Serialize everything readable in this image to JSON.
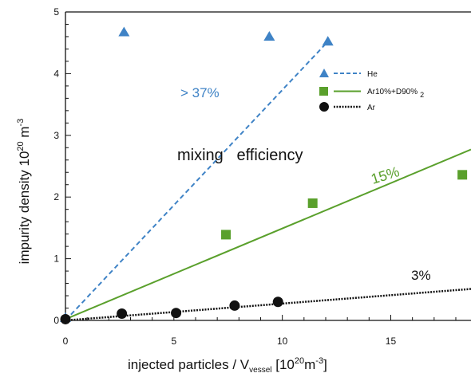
{
  "chart_data": {
    "type": "scatter",
    "xlabel": "injected particles / V",
    "xlabel_sub": "vessel",
    "xlabel_unit_open": " [10",
    "xlabel_unit_exp1": "20",
    "xlabel_unit_mid": "m",
    "xlabel_unit_exp2": "-3",
    "xlabel_unit_close": "]",
    "ylabel": "impurity density 10",
    "ylabel_exp1": "20",
    "ylabel_unit": " m",
    "ylabel_exp2": "-3",
    "xlim": [
      0,
      18.7
    ],
    "ylim": [
      0,
      5
    ],
    "xticks": [
      0,
      5,
      10,
      15
    ],
    "yticks": [
      0,
      1,
      2,
      3,
      4,
      5
    ],
    "grid": false,
    "legend_position": "top-right",
    "series": [
      {
        "name": "He",
        "marker": "triangle",
        "color": "#3f83c6",
        "line_style": "dashed",
        "x": [
          0,
          2.7,
          9.4,
          12.1
        ],
        "y": [
          0.04,
          4.67,
          4.6,
          4.52
        ],
        "fit_x": [
          0,
          12.1
        ],
        "fit_y": [
          0,
          4.52
        ]
      },
      {
        "name": "Ar10%+D90%",
        "name_sub": "2",
        "marker": "square",
        "color": "#5aa02c",
        "line_style": "solid",
        "x": [
          7.4,
          11.4,
          18.3
        ],
        "y": [
          1.39,
          1.9,
          2.36
        ],
        "fit_x": [
          0,
          18.7
        ],
        "fit_y": [
          0.02,
          2.77
        ]
      },
      {
        "name": "Ar",
        "marker": "circle",
        "color": "#111111",
        "line_style": "dotted",
        "x": [
          0,
          2.6,
          5.1,
          7.8,
          9.8
        ],
        "y": [
          0.02,
          0.11,
          0.12,
          0.24,
          0.3
        ],
        "fit_x": [
          0,
          18.7
        ],
        "fit_y": [
          0,
          0.51
        ]
      }
    ],
    "annotations": [
      {
        "text": "> 37%",
        "color": "#3f83c6"
      },
      {
        "text": "mixing   efficiency",
        "color": "#111111"
      },
      {
        "text": "15%",
        "color": "#5aa02c"
      },
      {
        "text": "3%",
        "color": "#111111"
      }
    ]
  }
}
